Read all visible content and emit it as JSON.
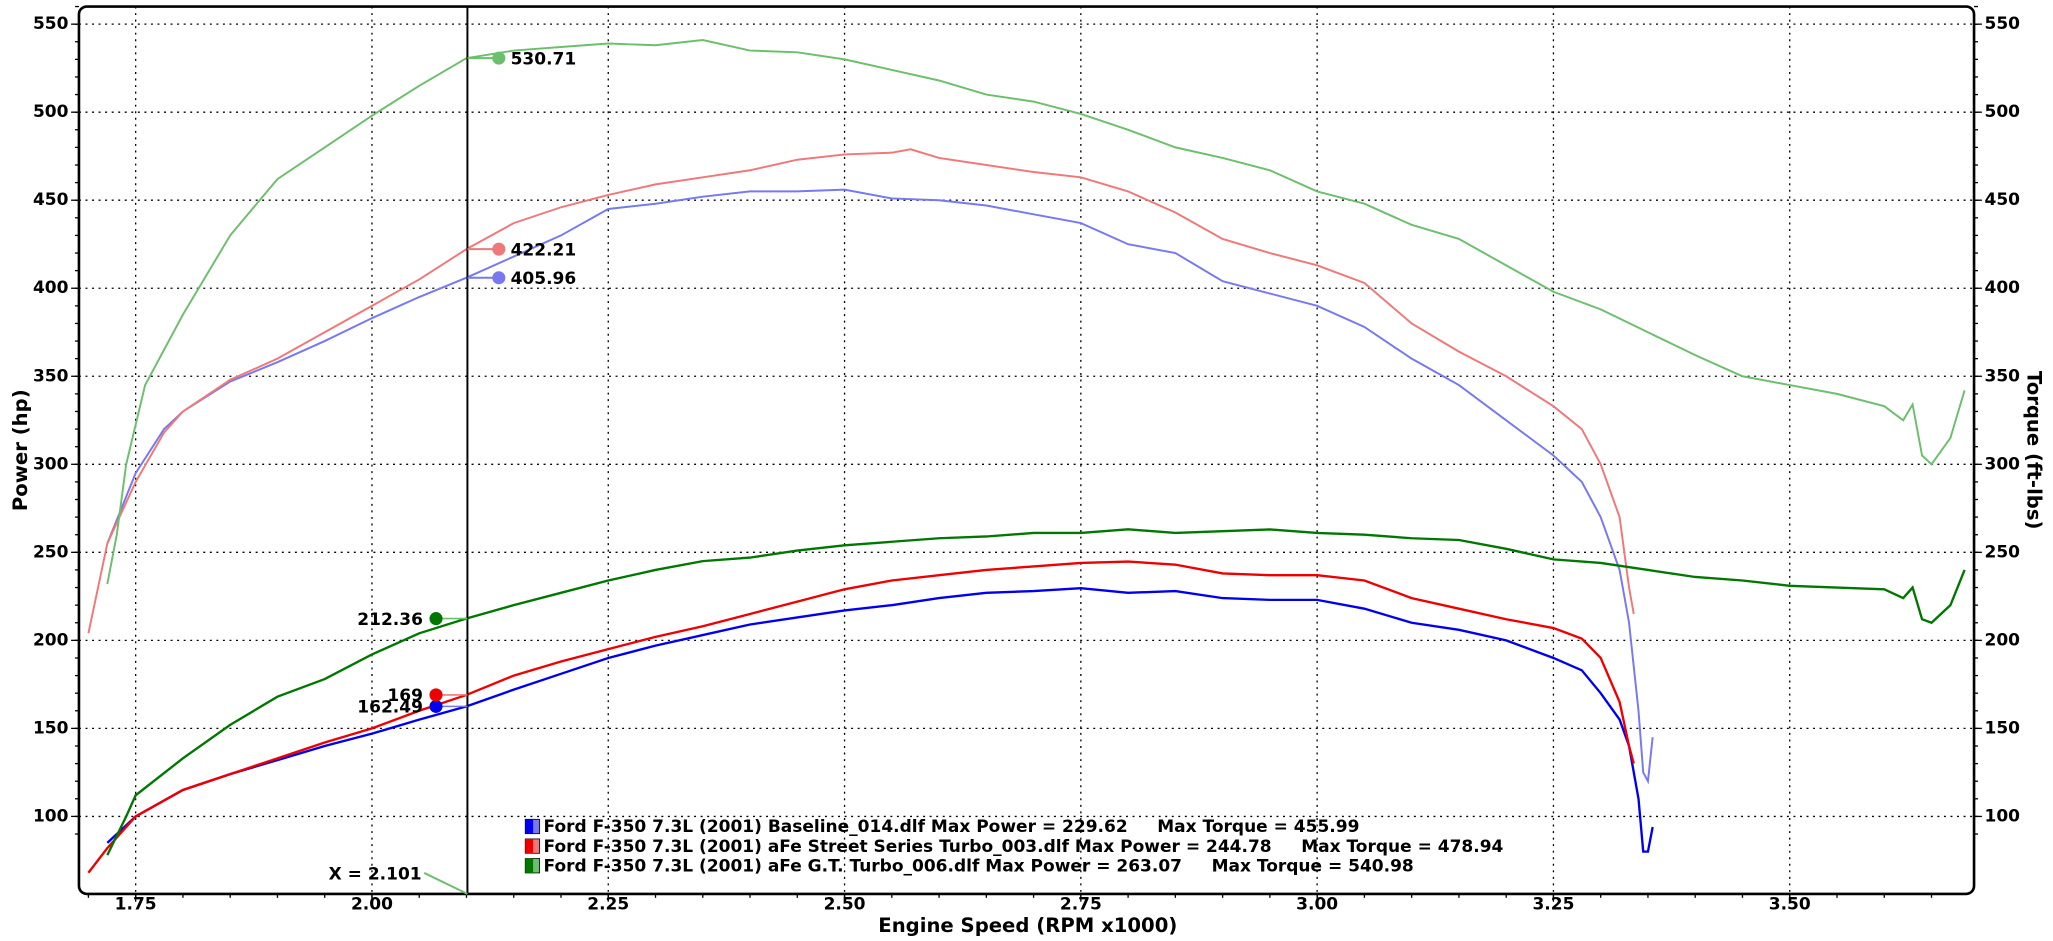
{
  "chart_data": {
    "type": "line",
    "xlabel": "Engine Speed (RPM x1000)",
    "ylabel": "Power (hp)",
    "y2label": "Torque (ft-lbs)",
    "xlim": [
      1.69,
      3.695
    ],
    "ylim": [
      56,
      560
    ],
    "y2lim": [
      56,
      560
    ],
    "grid": true,
    "xticks": [
      {
        "value": 1.75,
        "label": "1.75"
      },
      {
        "value": 2.0,
        "label": "2.00"
      },
      {
        "value": 2.25,
        "label": "2.25"
      },
      {
        "value": 2.5,
        "label": "2.50"
      },
      {
        "value": 2.75,
        "label": "2.75"
      },
      {
        "value": 3.0,
        "label": "3.00"
      },
      {
        "value": 3.25,
        "label": "3.25"
      },
      {
        "value": 3.5,
        "label": "3.50"
      }
    ],
    "yticks": [
      100,
      150,
      200,
      250,
      300,
      350,
      400,
      450,
      500,
      550
    ],
    "y2ticks": [
      100,
      150,
      200,
      250,
      300,
      350,
      400,
      450,
      500,
      550
    ],
    "cursor": {
      "label": "X = 2.101",
      "x": 2.101
    },
    "series": [
      {
        "name": "Ford F-350 7.3L (2001) Baseline_014.dlf Max Power = 229.62     Max Torque = 455.99",
        "color": "#0000ee",
        "torque_color": "#7878f0",
        "power_readout": 162.49,
        "torque_readout": 405.96,
        "power_x": [
          1.72,
          1.75,
          1.8,
          1.85,
          1.9,
          1.95,
          2.0,
          2.05,
          2.1,
          2.15,
          2.2,
          2.25,
          2.3,
          2.35,
          2.4,
          2.45,
          2.5,
          2.55,
          2.6,
          2.65,
          2.7,
          2.75,
          2.8,
          2.85,
          2.9,
          2.95,
          3.0,
          3.05,
          3.1,
          3.15,
          3.2,
          3.25,
          3.28,
          3.3,
          3.32,
          3.33,
          3.34,
          3.345,
          3.35,
          3.355
        ],
        "power": [
          85,
          100,
          115,
          124,
          132,
          140,
          147,
          155,
          162.5,
          172,
          181,
          190,
          197,
          203,
          209,
          213,
          217,
          220,
          224,
          227,
          228,
          229.62,
          227,
          228,
          224,
          223,
          223,
          218,
          210,
          206,
          200,
          190,
          183,
          170,
          155,
          140,
          110,
          80,
          80,
          94
        ],
        "torque_x": [
          1.72,
          1.75,
          1.78,
          1.8,
          1.85,
          1.9,
          1.95,
          2.0,
          2.05,
          2.1,
          2.15,
          2.2,
          2.25,
          2.3,
          2.35,
          2.4,
          2.45,
          2.5,
          2.55,
          2.6,
          2.65,
          2.7,
          2.75,
          2.8,
          2.85,
          2.9,
          2.95,
          3.0,
          3.05,
          3.1,
          3.15,
          3.2,
          3.25,
          3.28,
          3.3,
          3.32,
          3.33,
          3.34,
          3.345,
          3.35,
          3.355
        ],
        "torque": [
          255,
          295,
          320,
          330,
          347,
          358,
          370,
          383,
          395,
          406,
          418,
          430,
          445,
          448,
          452,
          455,
          455,
          455.99,
          451,
          450,
          447,
          442,
          437,
          425,
          420,
          404,
          397,
          390,
          378,
          360,
          345,
          325,
          305,
          290,
          270,
          240,
          210,
          160,
          125,
          120,
          145
        ]
      },
      {
        "name": "Ford F-350 7.3L (2001) aFe Street Series Turbo_003.dlf Max Power = 244.78     Max Torque = 478.94",
        "color": "#ee0000",
        "torque_color": "#f07878",
        "power_readout": 169.0,
        "torque_readout": 422.21,
        "power_x": [
          1.7,
          1.72,
          1.75,
          1.8,
          1.85,
          1.9,
          1.95,
          2.0,
          2.05,
          2.1,
          2.15,
          2.2,
          2.25,
          2.3,
          2.35,
          2.4,
          2.45,
          2.5,
          2.55,
          2.6,
          2.65,
          2.7,
          2.75,
          2.8,
          2.85,
          2.9,
          2.95,
          3.0,
          3.05,
          3.1,
          3.15,
          3.2,
          3.25,
          3.28,
          3.3,
          3.32,
          3.33,
          3.335
        ],
        "power": [
          68,
          82,
          100,
          115,
          124,
          133,
          142,
          150,
          160,
          169,
          180,
          188,
          195,
          202,
          208,
          215,
          222,
          229,
          234,
          237,
          240,
          242,
          244,
          244.78,
          243,
          238,
          237,
          237,
          234,
          224,
          218,
          212,
          207,
          201,
          190,
          165,
          140,
          130
        ],
        "torque_x": [
          1.7,
          1.72,
          1.75,
          1.78,
          1.8,
          1.85,
          1.9,
          1.95,
          2.0,
          2.05,
          2.1,
          2.15,
          2.2,
          2.25,
          2.3,
          2.35,
          2.4,
          2.45,
          2.5,
          2.55,
          2.57,
          2.6,
          2.65,
          2.7,
          2.75,
          2.8,
          2.85,
          2.9,
          2.95,
          3.0,
          3.05,
          3.1,
          3.15,
          3.2,
          3.25,
          3.28,
          3.3,
          3.32,
          3.33,
          3.335
        ],
        "torque": [
          204,
          255,
          290,
          318,
          330,
          348,
          360,
          375,
          390,
          405,
          422.2,
          437,
          446,
          453,
          459,
          463,
          467,
          473,
          476,
          477,
          478.94,
          474,
          470,
          466,
          463,
          455,
          443,
          428,
          420,
          413,
          403,
          380,
          364,
          350,
          333,
          320,
          300,
          270,
          230,
          215
        ]
      },
      {
        "name": "Ford F-350 7.3L (2001) aFe G.T. Turbo_006.dlf Max Power = 263.07     Max Torque = 540.98",
        "color": "#007700",
        "torque_color": "#6cbf6c",
        "power_readout": 212.36,
        "torque_readout": 530.71,
        "power_x": [
          1.72,
          1.74,
          1.75,
          1.8,
          1.85,
          1.9,
          1.95,
          2.0,
          2.05,
          2.1,
          2.15,
          2.2,
          2.25,
          2.3,
          2.35,
          2.4,
          2.45,
          2.5,
          2.55,
          2.6,
          2.65,
          2.7,
          2.75,
          2.8,
          2.85,
          2.9,
          2.95,
          3.0,
          3.05,
          3.1,
          3.15,
          3.2,
          3.25,
          3.3,
          3.35,
          3.4,
          3.45,
          3.5,
          3.55,
          3.6,
          3.62,
          3.63,
          3.64,
          3.65,
          3.67,
          3.685
        ],
        "power": [
          78,
          100,
          112,
          133,
          152,
          168,
          178,
          192,
          204,
          212.4,
          220,
          227,
          234,
          240,
          245,
          247,
          251,
          254,
          256,
          258,
          259,
          261,
          261,
          263.07,
          261,
          262,
          263,
          261,
          260,
          258,
          257,
          252,
          246,
          244,
          240,
          236,
          234,
          231,
          230,
          229,
          224,
          230,
          212,
          210,
          220,
          240
        ],
        "torque_x": [
          1.72,
          1.73,
          1.74,
          1.76,
          1.8,
          1.85,
          1.9,
          1.95,
          2.0,
          2.05,
          2.1,
          2.15,
          2.2,
          2.25,
          2.3,
          2.35,
          2.4,
          2.45,
          2.5,
          2.55,
          2.6,
          2.65,
          2.7,
          2.75,
          2.8,
          2.85,
          2.9,
          2.95,
          3.0,
          3.05,
          3.1,
          3.15,
          3.2,
          3.25,
          3.3,
          3.35,
          3.4,
          3.45,
          3.5,
          3.55,
          3.6,
          3.62,
          3.63,
          3.64,
          3.65,
          3.67,
          3.685
        ],
        "torque": [
          232,
          260,
          300,
          345,
          385,
          430,
          462,
          480,
          498,
          515,
          530.7,
          535,
          537,
          539,
          538,
          540.98,
          535,
          534,
          530,
          524,
          518,
          510,
          506,
          499,
          490,
          480,
          474,
          467,
          455,
          448,
          436,
          428,
          413,
          398,
          388,
          375,
          362,
          350,
          345,
          340,
          333,
          325,
          334,
          305,
          300,
          315,
          342
        ]
      }
    ]
  }
}
